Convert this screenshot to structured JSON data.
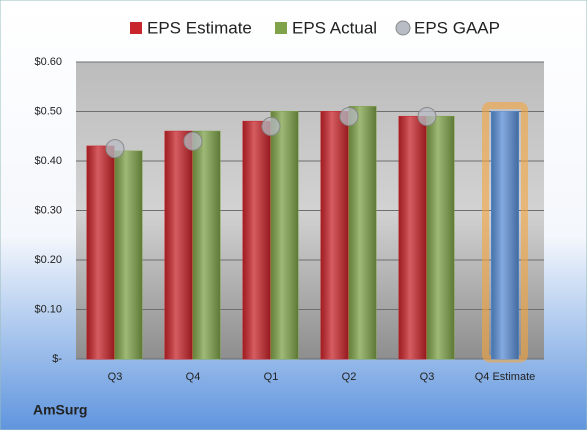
{
  "chart_data": {
    "type": "bar",
    "categories": [
      "Q3",
      "Q4",
      "Q1",
      "Q2",
      "Q3",
      "Q4 Estimate"
    ],
    "series": [
      {
        "name": "EPS Estimate",
        "color": "#c8262c",
        "colors": [
          "#c8262c",
          "#c8262c",
          "#c8262c",
          "#c8262c",
          "#c8262c",
          "#5b8fd6"
        ],
        "values": [
          0.43,
          0.46,
          0.48,
          0.5,
          0.49,
          0.5
        ]
      },
      {
        "name": "EPS Actual",
        "color": "#7fa24a",
        "values": [
          0.42,
          0.46,
          0.5,
          0.51,
          0.49,
          null
        ]
      },
      {
        "name": "EPS GAAP",
        "color": "#b8bcc4",
        "marker": "circle",
        "values": [
          0.425,
          0.44,
          0.47,
          0.49,
          0.49,
          null
        ]
      }
    ],
    "highlight_color": "#f5a540",
    "ylim": [
      0,
      0.6
    ],
    "yticks": [
      {
        "value": 0,
        "label": "$-"
      },
      {
        "value": 0.1,
        "label": "$0.10"
      },
      {
        "value": 0.2,
        "label": "$0.20"
      },
      {
        "value": 0.3,
        "label": "$0.30"
      },
      {
        "value": 0.4,
        "label": "$0.40"
      },
      {
        "value": 0.5,
        "label": "$0.50"
      },
      {
        "value": 0.6,
        "label": "$0.60"
      }
    ],
    "grid": true,
    "legend": "top",
    "company": "AmSurg"
  }
}
